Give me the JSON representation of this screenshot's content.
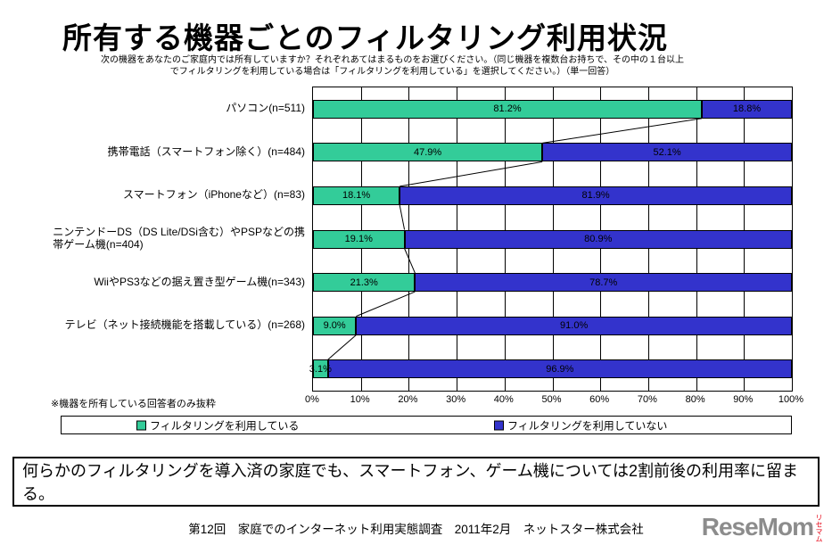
{
  "title": "所有する機器ごとのフィルタリング利用状況",
  "subtitle": {
    "line1": "次の機器をあなたのご家庭内では所有していますか？それぞれあてはまるものをお選びください。（同じ機器を複数台お持ちで、その中の１台以上",
    "line2": "でフィルタリングを利用している場合は「フィルタリングを利用している」を選択してください。）（単一回答）"
  },
  "chart_data": {
    "type": "bar",
    "orientation": "horizontal",
    "stacked": true,
    "title": "所有する機器ごとのフィルタリング利用状況",
    "categories": [
      "パソコン(n=511)",
      "携帯電話（スマートフォン除く）(n=484)",
      "スマートフォン（iPhoneなど）(n=83)",
      "ニンテンドーDS（DS Lite/DSi含む）やPSPなどの携\n帯ゲーム機(n=404)",
      "WiiやPS3などの据え置き型ゲーム機(n=343)",
      "テレビ（ネット接続機能を搭載している）(n=268)",
      ""
    ],
    "series": [
      {
        "name": "フィルタリングを利用している",
        "color": "#33CC99",
        "values": [
          81.2,
          47.9,
          18.1,
          19.1,
          21.3,
          9.0,
          3.1
        ]
      },
      {
        "name": "フィルタリングを利用していない",
        "color": "#3333CC",
        "values": [
          18.8,
          52.1,
          81.9,
          80.9,
          78.7,
          91.0,
          96.9
        ]
      }
    ],
    "value_suffix": "%",
    "xlim": [
      0,
      100
    ],
    "x_ticks": [
      "0%",
      "10%",
      "20%",
      "30%",
      "40%",
      "50%",
      "60%",
      "70%",
      "80%",
      "90%",
      "100%"
    ],
    "grid": true,
    "legend_position": "bottom"
  },
  "footnote": "※機器を所有している回答者のみ抜粋",
  "summary": "何らかのフィルタリングを導入済の家庭でも、スマートフォン、ゲーム機については2割前後の利用率に留まる。",
  "caption": "第12回　家庭でのインターネット利用実態調査　2011年2月　ネットスター株式会社",
  "logo": {
    "text": "ReseMom",
    "vertical_text": "リセマム"
  }
}
